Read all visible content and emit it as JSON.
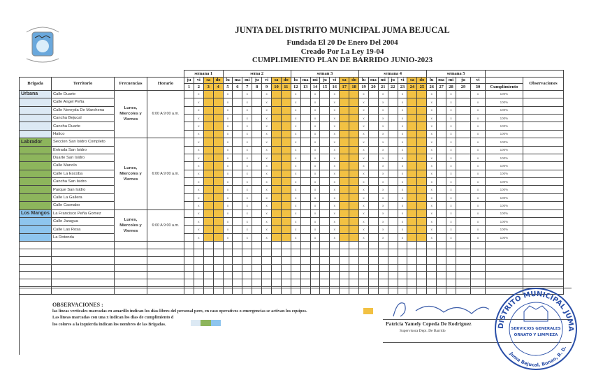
{
  "header": {
    "title": "JUNTA DEL DISTRITO MUNICIPAL JUMA BEJUCAL",
    "line2": "Fundada El 20 De Enero Del 2004",
    "line3": "Creado Por La Ley 19-04",
    "line4": "CUMPLIMIENTO PLAN DE BARRIDO JUNIO-2023"
  },
  "table": {
    "col_brigada": "Brigada",
    "col_territorio": "Territorio",
    "col_frecuencias": "Frecuencias",
    "col_horario": "Horario",
    "col_cumplimiento": "Cumplimiento",
    "col_observaciones": "Observaciones",
    "weeks": [
      {
        "label": "semana 1",
        "days": 4
      },
      {
        "label": "sema 2",
        "days": 7
      },
      {
        "label": "seman 3",
        "days": 7
      },
      {
        "label": "semana 4",
        "days": 7
      },
      {
        "label": "semana 5",
        "days": 5
      }
    ],
    "day_names": [
      "ju",
      "vi",
      "sa",
      "do",
      "lu",
      "ma",
      "mi",
      "ju",
      "vi",
      "sa",
      "do",
      "lu",
      "ma",
      "mi",
      "ju",
      "vi",
      "sa",
      "do",
      "lu",
      "ma",
      "mi",
      "ju",
      "vi",
      "sa",
      "do",
      "lu",
      "ma",
      "mi",
      "ju",
      "vi"
    ],
    "weekend_days": [
      3,
      4,
      10,
      11,
      17,
      18,
      24,
      25
    ],
    "marked_days": [
      2,
      5,
      7,
      9,
      12,
      14,
      16,
      19,
      21,
      23,
      26,
      28,
      30
    ],
    "mark_symbol": "x",
    "empty_rows": 7,
    "groups": [
      {
        "brigada": "Urbana",
        "color": "#dce9f4",
        "frecuencias": "Lunes, Miercoles y Viernes",
        "horario": "6:00 A 9:00 a.m.",
        "territorios": [
          "Calle Duarte",
          "Calle Angel Peña",
          "Calle Nereyda De Marchena",
          "Cancha Bejucal",
          "Cancha Duarte",
          "Hatico"
        ],
        "cumplimiento": "100%"
      },
      {
        "brigada": "Labrador",
        "color": "#8db55c",
        "frecuencias": "Lunes, Miercoles y Viernes",
        "horario": "6:00 A 9:00 a.m.",
        "territorios": [
          "Seccion San Isidro Completo",
          "Entrada San Isidro",
          "Duarte San Isidro",
          "Calle Manolo",
          "Calle La Escoba",
          "Cancha San Isidro",
          "Parque San Isidro",
          "Calle La Gallera",
          "Calle Caonabo"
        ],
        "cumplimiento": "100%"
      },
      {
        "brigada": "Los Mangos",
        "color": "#8ec5ee",
        "frecuencias": "Lunes, Miercoles y Viernes",
        "horario": "6:00 A 9:00 a.m.",
        "territorios": [
          "La Francisco Peña Gomez",
          "Calle Jaragua",
          "Calle Las Rosa",
          "La Rotonda"
        ],
        "cumplimiento": "100%"
      }
    ]
  },
  "colors": {
    "weekend": "#f2c143",
    "brigada_urbana": "#dce9f4",
    "brigada_labrador": "#8db55c",
    "brigada_mangos": "#8ec5ee",
    "stamp": "#2a4fa8"
  },
  "observaciones": {
    "title": "OBSERVACIONES :",
    "line1": "las lineas verticales marcadas en amarillo indican los dias  libres del personal pero, en caso operativos o emergencias se activan los equipos.",
    "line2": "Las lineas marcadas con una x indican los dias de cumplimiento d",
    "line3": "los colores a la izquierda indican los nombres de las Brigadas."
  },
  "signature": {
    "name": "Patricia Yamely Cepeda De Rodriguez",
    "role": "Supervisora Dept. De Barrido"
  },
  "stamp": {
    "text_top": "DISTRITO MUNICIPAL JUMA BEJUCAL",
    "text_mid1": "SERVICIOS GENERALES",
    "text_mid2": "ORNATO Y LIMPIEZA",
    "text_bottom": "Juma Bejucal, Bonao, R. D."
  }
}
